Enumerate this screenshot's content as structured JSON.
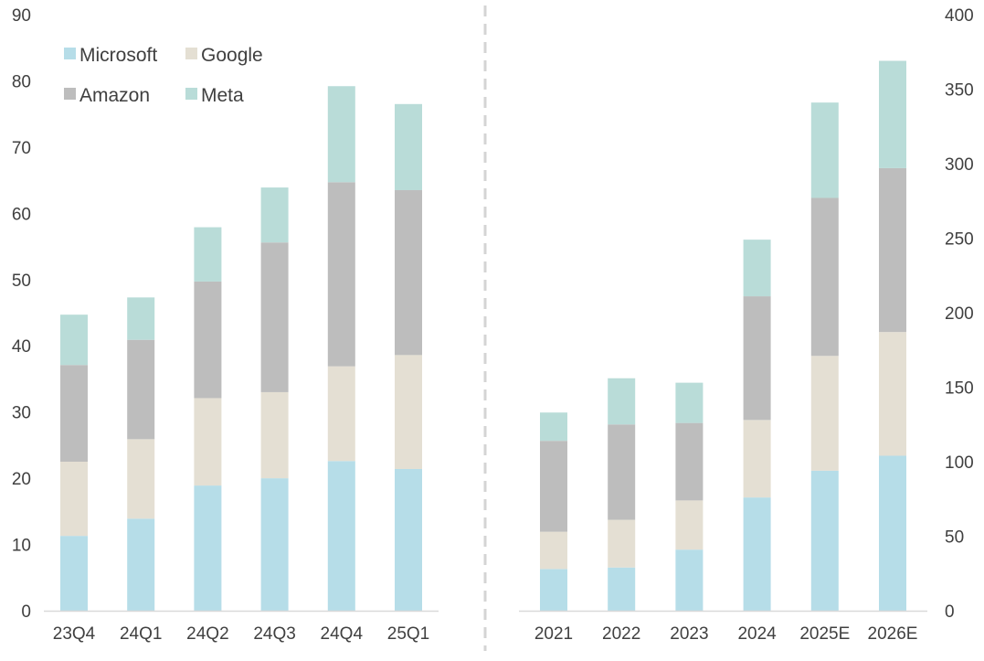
{
  "colors": {
    "Microsoft": "#b6dde8",
    "Google": "#e4dfd3",
    "Amazon": "#bdbdbd",
    "Meta": "#b9dcd8",
    "axis": "#d9d9d9",
    "divider": "#d4d4d4",
    "text": "#404040"
  },
  "legend": {
    "position": "top-left",
    "items": [
      {
        "name": "Microsoft",
        "color": "#b6dde8"
      },
      {
        "name": "Google",
        "color": "#e4dfd3"
      },
      {
        "name": "Amazon",
        "color": "#bdbdbd"
      },
      {
        "name": "Meta",
        "color": "#b9dcd8"
      }
    ]
  },
  "chart_data": [
    {
      "type": "bar",
      "stacked": true,
      "title": "",
      "xlabel": "",
      "ylabel": "",
      "axis_side": "left",
      "grid": false,
      "ylim": [
        0,
        90
      ],
      "yticks": [
        "0",
        "10",
        "20",
        "30",
        "40",
        "50",
        "60",
        "70",
        "80",
        "90"
      ],
      "categories": [
        "23Q4",
        "24Q1",
        "24Q2",
        "24Q3",
        "24Q4",
        "25Q1"
      ],
      "series": [
        {
          "name": "Microsoft",
          "values": [
            11.3,
            13.9,
            18.9,
            20.0,
            22.6,
            21.4
          ]
        },
        {
          "name": "Google",
          "values": [
            11.2,
            12.0,
            13.2,
            13.0,
            14.3,
            17.2
          ]
        },
        {
          "name": "Amazon",
          "values": [
            14.6,
            15.0,
            17.6,
            22.6,
            27.8,
            24.9
          ]
        },
        {
          "name": "Meta",
          "values": [
            7.6,
            6.4,
            8.2,
            8.3,
            14.5,
            13.0
          ]
        }
      ]
    },
    {
      "type": "bar",
      "stacked": true,
      "title": "",
      "xlabel": "",
      "ylabel": "",
      "axis_side": "right",
      "grid": false,
      "ylim": [
        0,
        400
      ],
      "yticks": [
        "0",
        "50",
        "100",
        "150",
        "200",
        "250",
        "300",
        "350",
        "400"
      ],
      "categories": [
        "2021",
        "2022",
        "2023",
        "2024",
        "2025E",
        "2026E"
      ],
      "series": [
        {
          "name": "Microsoft",
          "values": [
            28,
            29,
            41,
            76,
            94,
            104
          ]
        },
        {
          "name": "Google",
          "values": [
            25,
            32,
            33,
            52,
            77,
            83
          ]
        },
        {
          "name": "Amazon",
          "values": [
            61,
            64,
            52,
            83,
            106,
            110
          ]
        },
        {
          "name": "Meta",
          "values": [
            19,
            31,
            27,
            38,
            64,
            72
          ]
        }
      ]
    }
  ]
}
